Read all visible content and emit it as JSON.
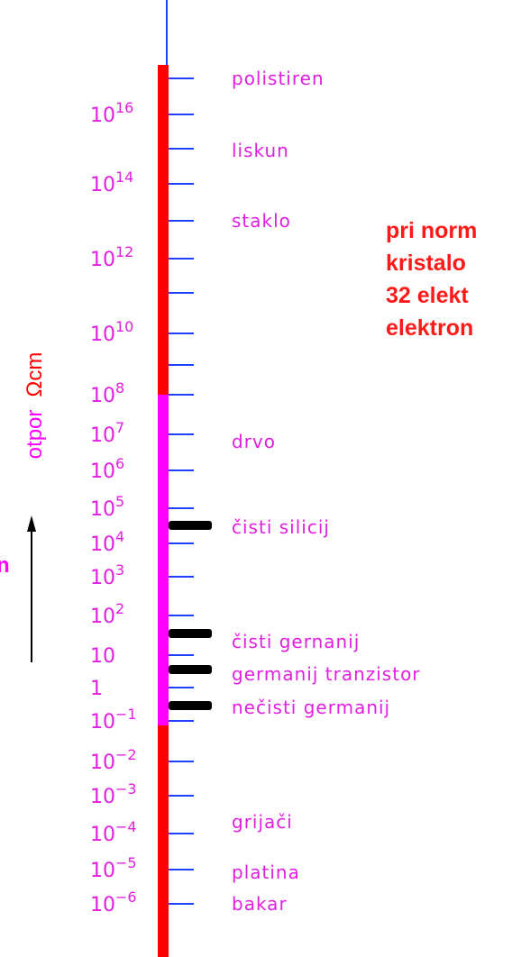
{
  "axis_title": "otpor",
  "axis_unit": "Ωcm",
  "side_letter": "n",
  "ticks": [
    {
      "base": "10",
      "exp": "16"
    },
    {
      "base": "10",
      "exp": "14"
    },
    {
      "base": "10",
      "exp": "12"
    },
    {
      "base": "10",
      "exp": "10"
    },
    {
      "base": "10",
      "exp": "8"
    },
    {
      "base": "10",
      "exp": "7"
    },
    {
      "base": "10",
      "exp": "6"
    },
    {
      "base": "10",
      "exp": "5"
    },
    {
      "base": "10",
      "exp": "4"
    },
    {
      "base": "10",
      "exp": "3"
    },
    {
      "base": "10",
      "exp": "2"
    },
    {
      "base": "10"
    },
    {
      "base": "1"
    },
    {
      "base": "10",
      "exp": "−1"
    },
    {
      "base": "10",
      "exp": "−2"
    },
    {
      "base": "10",
      "exp": "−3"
    },
    {
      "base": "10",
      "exp": "−4"
    },
    {
      "base": "10",
      "exp": "−5"
    },
    {
      "base": "10",
      "exp": "−6"
    }
  ],
  "materials": [
    "polistiren",
    "liskun",
    "staklo",
    "drvo",
    "čisti silicij",
    "čisti gernanij",
    "germanij tranzistor",
    "nečisti germanij",
    "grijači",
    "platina",
    "bakar"
  ],
  "note": [
    "pri norm",
    "kristalo",
    "32 elekt",
    "elektron"
  ]
}
